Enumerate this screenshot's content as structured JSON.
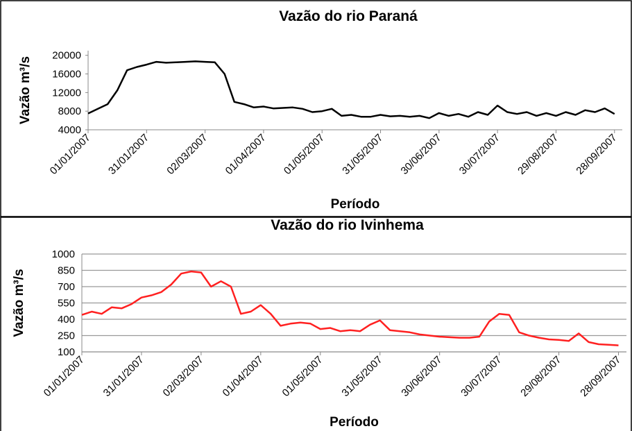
{
  "chart_data": [
    {
      "type": "line",
      "title": "Vazão do rio Paraná",
      "x_label": "Período",
      "y_label": "Vazão m³/s",
      "x": [
        "01/01/2007",
        "06/01/2007",
        "11/01/2007",
        "16/01/2007",
        "21/01/2007",
        "26/01/2007",
        "31/01/2007",
        "05/02/2007",
        "10/02/2007",
        "15/02/2007",
        "20/02/2007",
        "25/02/2007",
        "02/03/2007",
        "07/03/2007",
        "12/03/2007",
        "17/03/2007",
        "22/03/2007",
        "27/03/2007",
        "01/04/2007",
        "06/04/2007",
        "11/04/2007",
        "16/04/2007",
        "21/04/2007",
        "26/04/2007",
        "01/05/2007",
        "06/05/2007",
        "11/05/2007",
        "16/05/2007",
        "21/05/2007",
        "26/05/2007",
        "31/05/2007",
        "05/06/2007",
        "10/06/2007",
        "15/06/2007",
        "20/06/2007",
        "25/06/2007",
        "30/06/2007",
        "05/07/2007",
        "10/07/2007",
        "15/07/2007",
        "20/07/2007",
        "25/07/2007",
        "30/07/2007",
        "04/08/2007",
        "09/08/2007",
        "14/08/2007",
        "19/08/2007",
        "24/08/2007",
        "29/08/2007",
        "03/09/2007",
        "08/09/2007",
        "13/09/2007",
        "18/09/2007",
        "23/09/2007",
        "28/09/2007"
      ],
      "values": [
        7500,
        8500,
        9500,
        12500,
        16800,
        17500,
        18000,
        18600,
        18400,
        18500,
        18600,
        18700,
        18600,
        18500,
        16000,
        10000,
        9500,
        8800,
        9000,
        8600,
        8700,
        8800,
        8500,
        7800,
        8000,
        8500,
        7000,
        7200,
        6800,
        6800,
        7200,
        6900,
        7000,
        6800,
        7000,
        6500,
        7600,
        7000,
        7400,
        6800,
        7800,
        7200,
        9200,
        7800,
        7400,
        7800,
        7000,
        7600,
        7000,
        7800,
        7200,
        8200,
        7800,
        8600,
        7400
      ],
      "color": "#000000",
      "xlim": [
        "01/01/2007",
        "02/10/2007"
      ],
      "xticks": [
        "01/01/2007",
        "31/01/2007",
        "02/03/2007",
        "01/04/2007",
        "01/05/2007",
        "31/05/2007",
        "30/06/2007",
        "30/07/2007",
        "29/08/2007",
        "28/09/2007"
      ],
      "ylim": [
        4000,
        21000
      ],
      "yticks": [
        4000,
        8000,
        12000,
        16000,
        20000
      ],
      "grid": false
    },
    {
      "type": "line",
      "title": "Vazão do rio Ivinhema",
      "x_label": "Período",
      "y_label": "Vazão m³/s",
      "x": [
        "01/01/2007",
        "06/01/2007",
        "11/01/2007",
        "16/01/2007",
        "21/01/2007",
        "26/01/2007",
        "31/01/2007",
        "05/02/2007",
        "10/02/2007",
        "15/02/2007",
        "20/02/2007",
        "25/02/2007",
        "02/03/2007",
        "07/03/2007",
        "12/03/2007",
        "17/03/2007",
        "22/03/2007",
        "27/03/2007",
        "01/04/2007",
        "06/04/2007",
        "11/04/2007",
        "16/04/2007",
        "21/04/2007",
        "26/04/2007",
        "01/05/2007",
        "06/05/2007",
        "11/05/2007",
        "16/05/2007",
        "21/05/2007",
        "26/05/2007",
        "31/05/2007",
        "05/06/2007",
        "10/06/2007",
        "15/06/2007",
        "20/06/2007",
        "25/06/2007",
        "30/06/2007",
        "05/07/2007",
        "10/07/2007",
        "15/07/2007",
        "20/07/2007",
        "25/07/2007",
        "30/07/2007",
        "04/08/2007",
        "09/08/2007",
        "14/08/2007",
        "19/08/2007",
        "24/08/2007",
        "29/08/2007",
        "03/09/2007",
        "08/09/2007",
        "13/09/2007",
        "18/09/2007",
        "23/09/2007",
        "28/09/2007"
      ],
      "values": [
        440,
        470,
        450,
        510,
        500,
        540,
        600,
        620,
        650,
        720,
        820,
        840,
        830,
        700,
        750,
        700,
        450,
        470,
        530,
        450,
        340,
        360,
        370,
        360,
        310,
        320,
        290,
        300,
        290,
        350,
        390,
        300,
        290,
        280,
        260,
        250,
        240,
        235,
        230,
        230,
        240,
        380,
        450,
        440,
        280,
        250,
        230,
        215,
        210,
        200,
        270,
        190,
        170,
        165,
        160
      ],
      "color": "#ff2020",
      "xlim": [
        "01/01/2007",
        "02/10/2007"
      ],
      "xticks": [
        "01/01/2007",
        "31/01/2007",
        "02/03/2007",
        "01/04/2007",
        "01/05/2007",
        "31/05/2007",
        "30/06/2007",
        "30/07/2007",
        "29/08/2007",
        "28/09/2007"
      ],
      "ylim": [
        100,
        1000
      ],
      "yticks": [
        100,
        250,
        400,
        550,
        700,
        850,
        1000
      ],
      "grid": true
    }
  ]
}
